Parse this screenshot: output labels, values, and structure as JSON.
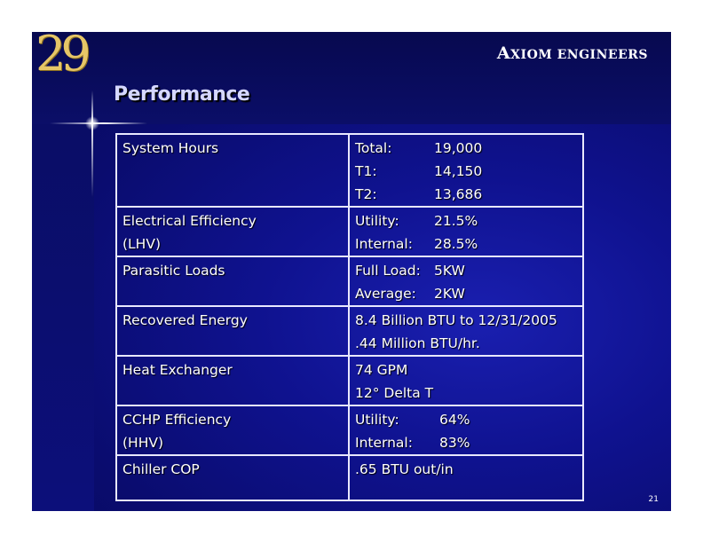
{
  "header": {
    "logo_text": "29",
    "company_initial": "A",
    "company_rest": "XIOM ENGINEERS",
    "title": "Performance"
  },
  "table": {
    "rows": [
      {
        "label_lines": [
          "System Hours"
        ],
        "value_lines": [
          {
            "key": "Total:",
            "val": "19,000"
          },
          {
            "key": "T1:",
            "val": "14,150"
          },
          {
            "key": "T2:",
            "val": "13,686"
          }
        ]
      },
      {
        "label_lines": [
          "Electrical Efficiency",
          "(LHV)"
        ],
        "value_lines": [
          {
            "key": "Utility:",
            "val": "21.5%"
          },
          {
            "key": "Internal:",
            "val": "28.5%"
          }
        ]
      },
      {
        "label_lines": [
          "Parasitic Loads"
        ],
        "value_lines": [
          {
            "key": "Full Load:",
            "val": "5KW"
          },
          {
            "key": "Average:",
            "val": "2KW"
          }
        ]
      },
      {
        "label_lines": [
          "Recovered Energy"
        ],
        "value_lines": [
          {
            "text": "8.4 Billion BTU to 12/31/2005"
          },
          {
            "text": ".44 Million BTU/hr."
          }
        ]
      },
      {
        "label_lines": [
          "Heat Exchanger"
        ],
        "value_lines": [
          {
            "text": "74 GPM"
          },
          {
            "text": "12° Delta T"
          }
        ]
      },
      {
        "label_lines": [
          "CCHP Efficiency",
          "(HHV)"
        ],
        "value_lines": [
          {
            "key": "Utility:",
            "val": "64%"
          },
          {
            "key": "Internal:",
            "val": "83%"
          }
        ]
      },
      {
        "label_lines": [
          "Chiller COP"
        ],
        "value_lines": [
          {
            "text": ".65 BTU out/in"
          }
        ]
      }
    ]
  },
  "footer": {
    "page_number": "21"
  },
  "colors": {
    "background": "#0f128f",
    "logo": "#e6c667",
    "text": "#ffffff",
    "border": "#e8e8ff"
  }
}
